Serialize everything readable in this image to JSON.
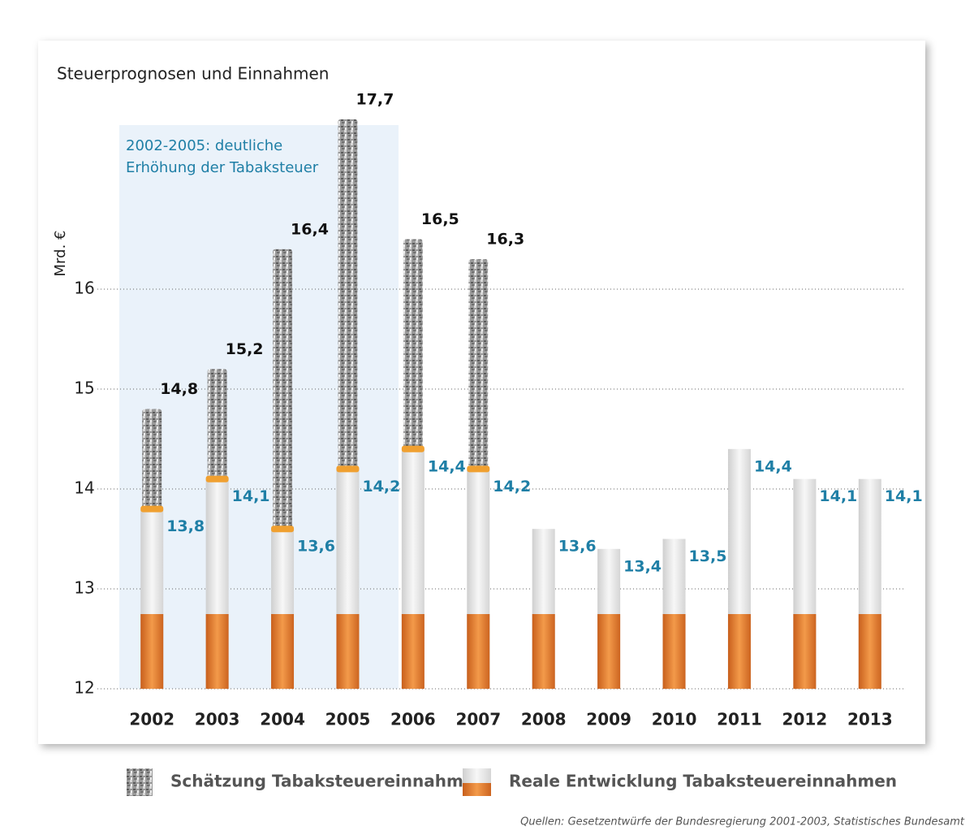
{
  "chart_data": {
    "type": "cigarette",
    "title": "Steuerprognosen und Einnahmen",
    "y_label": "Mrd. €",
    "annotation": [
      "2002-2005: deutliche",
      "Erhöhung der Tabaksteuer"
    ],
    "categories": [
      "2002",
      "2003",
      "2004",
      "2005",
      "2006",
      "2007",
      "2008",
      "2009",
      "2010",
      "2011",
      "2012",
      "2013"
    ],
    "series": [
      {
        "name": "Schätzung Tabaksteuereinnahmen",
        "color": "#8c8c8c",
        "values": [
          14.8,
          15.2,
          16.4,
          17.7,
          16.5,
          16.3,
          null,
          null,
          null,
          null,
          null,
          null
        ],
        "value_labels": [
          "14,8",
          "15,2",
          "16,4",
          "17,7",
          "16,5",
          "16,3",
          null,
          null,
          null,
          null,
          null,
          null
        ]
      },
      {
        "name": "Reale Entwicklung Tabaksteuereinnahmen",
        "color": "#e9e9e9",
        "values": [
          13.8,
          14.1,
          13.6,
          14.2,
          14.4,
          14.2,
          13.6,
          13.4,
          13.5,
          14.4,
          14.1,
          14.1
        ],
        "value_labels": [
          "13,8",
          "14,1",
          "13,6",
          "14,2",
          "14,4",
          "14,2",
          "13,6",
          "13,4",
          "13,5",
          "14,4",
          "14,1",
          "14,1"
        ]
      }
    ],
    "ylim": [
      12,
      18
    ],
    "yticks": [
      12,
      13,
      14,
      15,
      16
    ],
    "grid": true,
    "source": "Quellen: Gesetzentwürfe der Bundesregierung 2001-2003, Statistisches Bundesamt"
  }
}
